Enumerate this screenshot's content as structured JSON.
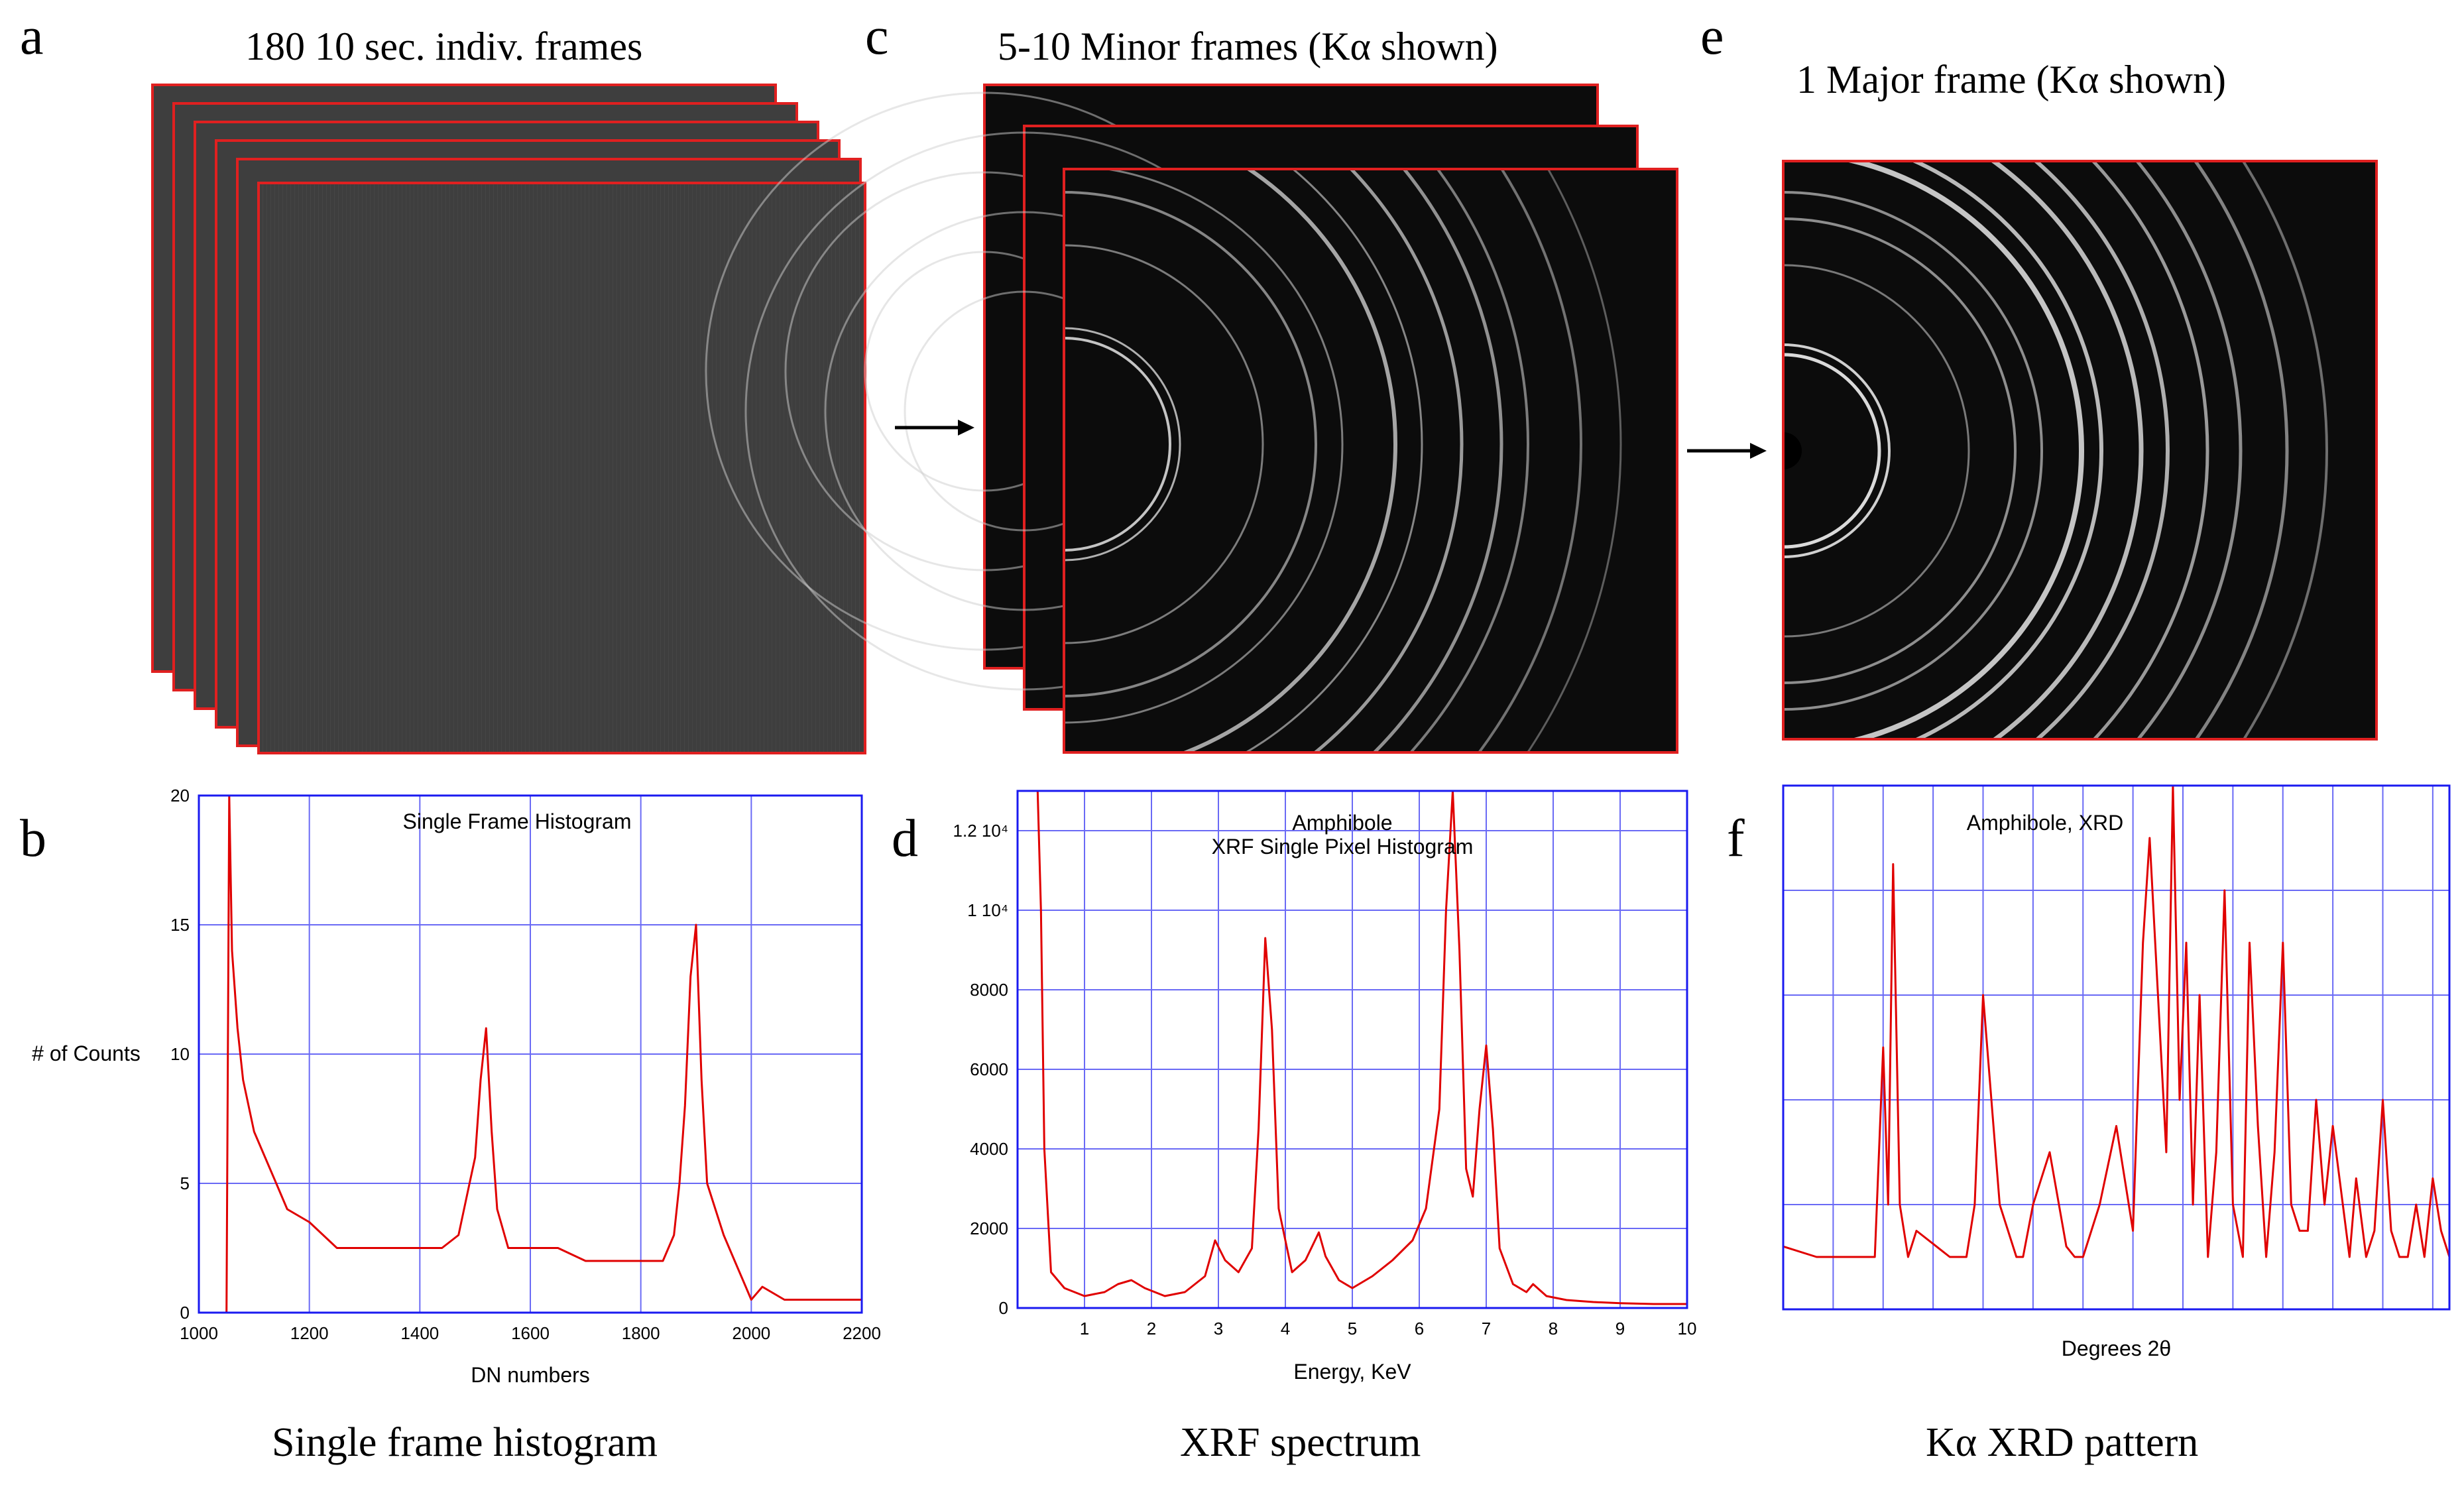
{
  "panels": {
    "a": {
      "letter": "a",
      "heading": "180 10 sec. indiv. frames"
    },
    "b": {
      "letter": "b",
      "caption": "Single frame histogram"
    },
    "c": {
      "letter": "c",
      "heading": "5-10 Minor frames (Kα shown)"
    },
    "d": {
      "letter": "d",
      "caption": "XRF spectrum"
    },
    "e": {
      "letter": "e",
      "heading": "1 Major frame (Kα shown)"
    },
    "f": {
      "letter": "f",
      "caption": "Kα XRD pattern"
    }
  },
  "colors": {
    "frame_border": "#e02020",
    "plot_border": "#1a1af0",
    "grid": "#6a6af5",
    "series": "#e00000"
  },
  "chart_data": [
    {
      "id": "b",
      "type": "line",
      "title": "Single Frame Histogram",
      "xlabel": "DN numbers",
      "ylabel": "# of Counts",
      "xlim": [
        1000,
        2200
      ],
      "ylim": [
        0,
        20
      ],
      "x_ticks": [
        1000,
        1200,
        1400,
        1600,
        1800,
        2000,
        2200
      ],
      "y_ticks": [
        0,
        5,
        10,
        15,
        20
      ],
      "grid": true,
      "x": [
        1050,
        1055,
        1060,
        1070,
        1080,
        1090,
        1100,
        1120,
        1140,
        1160,
        1200,
        1250,
        1300,
        1350,
        1400,
        1440,
        1470,
        1490,
        1500,
        1510,
        1520,
        1530,
        1540,
        1560,
        1600,
        1650,
        1700,
        1750,
        1800,
        1840,
        1860,
        1870,
        1880,
        1890,
        1900,
        1910,
        1920,
        1950,
        1970,
        1990,
        2000,
        2020,
        2060,
        2100,
        2150,
        2200
      ],
      "y": [
        0,
        20,
        14,
        11,
        9,
        8,
        7,
        6,
        5,
        4,
        3.5,
        2.5,
        2.5,
        2.5,
        2.5,
        2.5,
        3,
        5,
        6,
        9,
        11,
        7,
        4,
        2.5,
        2.5,
        2.5,
        2,
        2,
        2,
        2,
        3,
        5,
        8,
        13,
        15,
        9,
        5,
        3,
        2,
        1,
        0.5,
        1,
        0.5,
        0.5,
        0.5,
        0.5
      ]
    },
    {
      "id": "d",
      "type": "line",
      "title": "Amphibole",
      "subtitle": "XRF Single Pixel Histogram",
      "xlabel": "Energy, KeV",
      "ylabel": "",
      "xlim": [
        0,
        10
      ],
      "ylim": [
        0,
        13000
      ],
      "x_ticks": [
        1,
        2,
        3,
        4,
        5,
        6,
        7,
        8,
        9,
        10
      ],
      "y_ticks": [
        0,
        2000,
        4000,
        6000,
        8000,
        10000,
        12000
      ],
      "y_tick_labels": [
        "0",
        "2000",
        "4000",
        "6000",
        "8000",
        "1 10⁴",
        "1.2 10⁴"
      ],
      "grid": true,
      "x": [
        0.3,
        0.35,
        0.4,
        0.5,
        0.7,
        1.0,
        1.3,
        1.5,
        1.7,
        1.9,
        2.2,
        2.5,
        2.8,
        2.95,
        3.1,
        3.3,
        3.5,
        3.6,
        3.7,
        3.8,
        3.9,
        4.1,
        4.3,
        4.5,
        4.6,
        4.8,
        5.0,
        5.3,
        5.6,
        5.9,
        6.1,
        6.3,
        6.4,
        6.5,
        6.6,
        6.7,
        6.8,
        6.9,
        7.0,
        7.1,
        7.2,
        7.4,
        7.6,
        7.7,
        7.9,
        8.2,
        8.6,
        9.0,
        9.5,
        10.0
      ],
      "y": [
        13000,
        10000,
        4000,
        900,
        500,
        300,
        400,
        600,
        700,
        500,
        300,
        400,
        800,
        1700,
        1200,
        900,
        1500,
        4500,
        9300,
        7000,
        2500,
        900,
        1200,
        1900,
        1300,
        700,
        500,
        800,
        1200,
        1700,
        2500,
        5000,
        10000,
        13000,
        9000,
        3500,
        2800,
        5000,
        6600,
        4500,
        1500,
        600,
        400,
        600,
        300,
        200,
        150,
        120,
        100,
        100
      ]
    },
    {
      "id": "f",
      "type": "line",
      "title": "Amphibole, XRD",
      "xlabel": "Degrees 2θ",
      "ylabel": "",
      "grid": true,
      "x": [
        0,
        2,
        4,
        5.5,
        6.0,
        6.3,
        6.6,
        7.0,
        7.5,
        8,
        10,
        11,
        11.5,
        12,
        13,
        14,
        14.4,
        15,
        16,
        17,
        17.5,
        18,
        19,
        20,
        21,
        21.6,
        22,
        23,
        23.4,
        23.8,
        24.2,
        24.6,
        25,
        25.5,
        26,
        26.5,
        27,
        27.6,
        28,
        28.5,
        29,
        29.5,
        30,
        30.5,
        31,
        31.5,
        32,
        32.5,
        33,
        34,
        34.4,
        35,
        35.5,
        36,
        36.5,
        37,
        37.5,
        38,
        38.5,
        39,
        39.5,
        40
      ],
      "y": [
        0.12,
        0.1,
        0.1,
        0.1,
        0.5,
        0.2,
        0.85,
        0.2,
        0.1,
        0.15,
        0.1,
        0.1,
        0.2,
        0.6,
        0.2,
        0.1,
        0.1,
        0.2,
        0.3,
        0.12,
        0.1,
        0.1,
        0.2,
        0.35,
        0.15,
        0.7,
        0.9,
        0.3,
        1.0,
        0.4,
        0.7,
        0.2,
        0.6,
        0.1,
        0.3,
        0.8,
        0.2,
        0.1,
        0.7,
        0.35,
        0.1,
        0.3,
        0.7,
        0.2,
        0.15,
        0.15,
        0.4,
        0.2,
        0.35,
        0.1,
        0.25,
        0.1,
        0.15,
        0.4,
        0.15,
        0.1,
        0.1,
        0.2,
        0.1,
        0.25,
        0.15,
        0.1
      ],
      "xlim": [
        0,
        40
      ],
      "ylim": [
        0,
        1.0
      ]
    }
  ]
}
